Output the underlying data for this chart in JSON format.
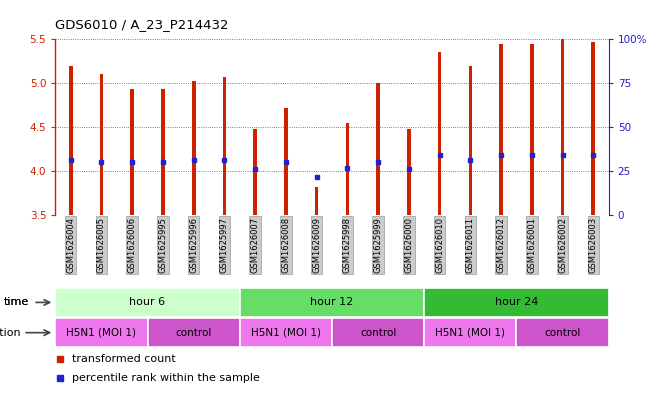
{
  "title": "GDS6010 / A_23_P214432",
  "samples": [
    "GSM1626004",
    "GSM1626005",
    "GSM1626006",
    "GSM1625995",
    "GSM1625996",
    "GSM1625997",
    "GSM1626007",
    "GSM1626008",
    "GSM1626009",
    "GSM1625998",
    "GSM1625999",
    "GSM1626000",
    "GSM1626010",
    "GSM1626011",
    "GSM1626012",
    "GSM1626001",
    "GSM1626002",
    "GSM1626003"
  ],
  "transformed_count": [
    5.2,
    5.1,
    4.93,
    4.93,
    5.02,
    5.07,
    4.48,
    4.72,
    3.82,
    4.55,
    5.0,
    4.48,
    5.35,
    5.2,
    5.45,
    5.45,
    5.5,
    5.47
  ],
  "percentile_rank": [
    4.12,
    4.1,
    4.1,
    4.1,
    4.12,
    4.12,
    4.02,
    4.1,
    3.93,
    4.03,
    4.1,
    4.02,
    4.18,
    4.12,
    4.18,
    4.18,
    4.18,
    4.18
  ],
  "ylim": [
    3.5,
    5.5
  ],
  "yticks": [
    3.5,
    4.0,
    4.5,
    5.0,
    5.5
  ],
  "y2ticks": [
    0,
    25,
    50,
    75,
    100
  ],
  "y2tick_labels": [
    "0",
    "25",
    "50",
    "75",
    "100%"
  ],
  "bar_color": "#cc2200",
  "marker_color": "#2222cc",
  "bar_width": 0.12,
  "groups_time": [
    {
      "label": "hour 6",
      "start": 0,
      "end": 6,
      "color": "#ccffcc"
    },
    {
      "label": "hour 12",
      "start": 6,
      "end": 12,
      "color": "#66dd66"
    },
    {
      "label": "hour 24",
      "start": 12,
      "end": 18,
      "color": "#33bb33"
    }
  ],
  "groups_infection": [
    {
      "label": "H5N1 (MOI 1)",
      "start": 0,
      "end": 3,
      "color": "#ee77ee"
    },
    {
      "label": "control",
      "start": 3,
      "end": 6,
      "color": "#cc55cc"
    },
    {
      "label": "H5N1 (MOI 1)",
      "start": 6,
      "end": 9,
      "color": "#ee77ee"
    },
    {
      "label": "control",
      "start": 9,
      "end": 12,
      "color": "#cc55cc"
    },
    {
      "label": "H5N1 (MOI 1)",
      "start": 12,
      "end": 15,
      "color": "#ee77ee"
    },
    {
      "label": "control",
      "start": 15,
      "end": 18,
      "color": "#cc55cc"
    }
  ],
  "tick_label_bg": "#cccccc",
  "tick_label_edge": "#999999",
  "grid_color": "#555555",
  "left_color": "#cc2200",
  "right_color": "#2222cc",
  "n": 18
}
